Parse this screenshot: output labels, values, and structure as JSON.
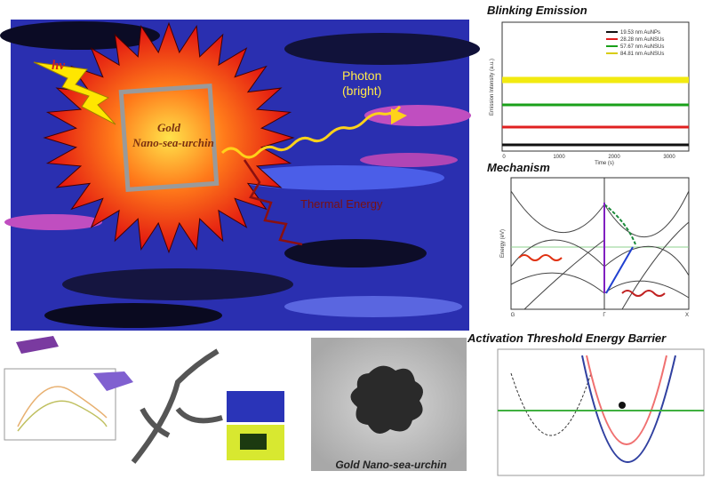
{
  "main": {
    "excitation": "hν",
    "particle_line1": "Gold",
    "particle_line2": "Nano-sea-urchin",
    "photon_line1": "Photon",
    "photon_line2": "(bright)",
    "thermal": "Thermal Energy"
  },
  "blinking": {
    "title": "Blinking Emission",
    "y_label": "Emission Intensity (a.u.)",
    "x_label": "Time (s)",
    "x_ticks": [
      "0",
      "1000",
      "2000",
      "3000"
    ],
    "legend": [
      "19.53 nm AuNPs",
      "28.28 nm AuNSUs",
      "57.67 nm AuNSUs",
      "84.81 nm AuNSUs"
    ]
  },
  "mechanism": {
    "title": "Mechanism",
    "y_label": "Energy (eV)",
    "x_ticks": [
      "G",
      "Γ",
      "X"
    ]
  },
  "barrier": {
    "title": "Activation Threshold Energy Barrier"
  },
  "tem": {
    "caption": "Gold Nano-sea-urchin"
  }
}
